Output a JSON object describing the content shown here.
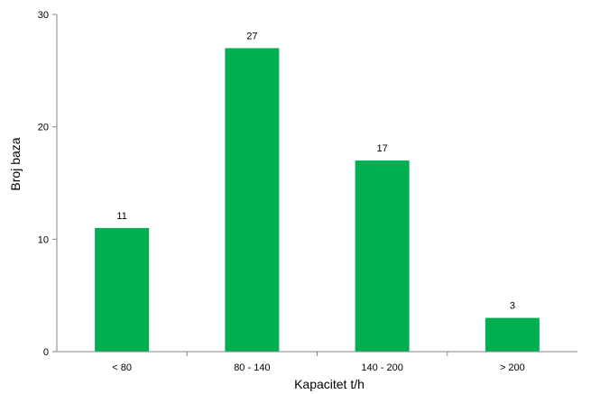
{
  "chart_data": {
    "type": "bar",
    "title": "",
    "xlabel": "Kapacitet  t/h",
    "ylabel": "Broj baza",
    "categories": [
      "< 80",
      "80 - 140",
      "140 - 200",
      "> 200"
    ],
    "values": [
      11,
      27,
      17,
      3
    ],
    "ylim": [
      0,
      30
    ],
    "yticks": [
      0,
      10,
      20,
      30
    ],
    "grid": false,
    "legend": "none",
    "bar_color": "#00b050",
    "data_labels": true
  }
}
